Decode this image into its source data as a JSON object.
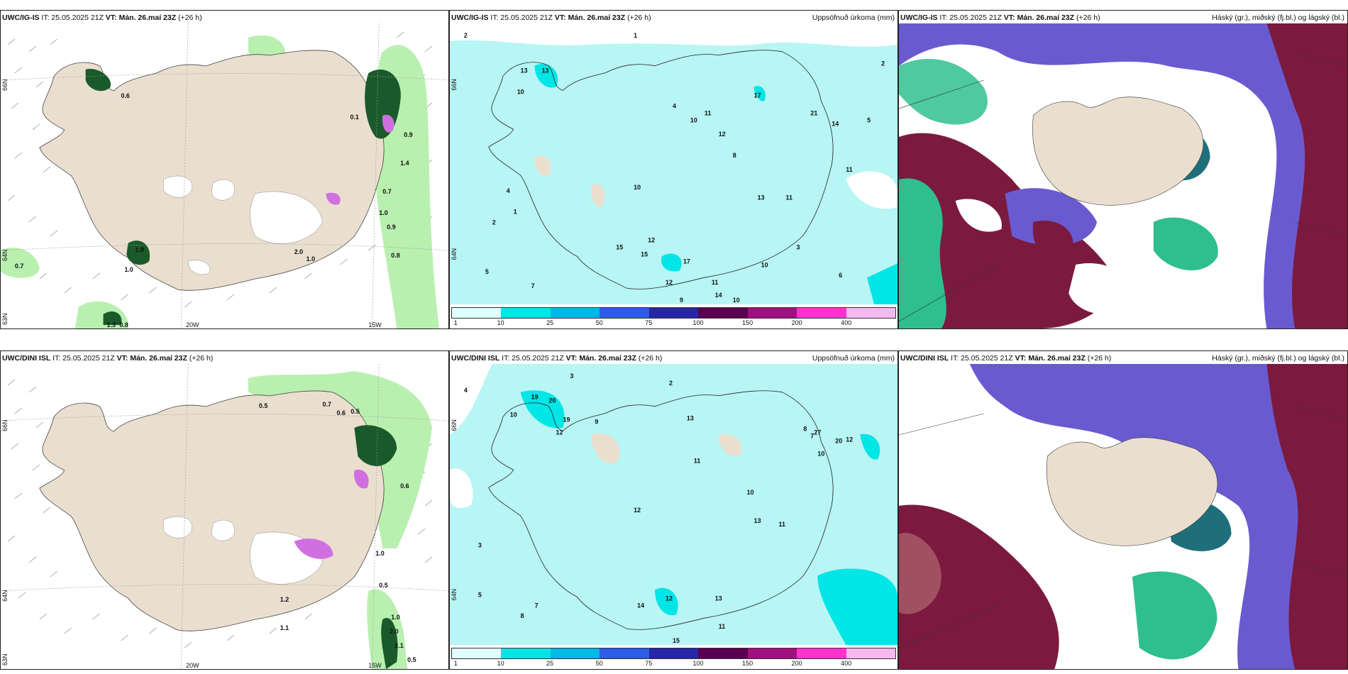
{
  "panels": {
    "top_left": {
      "model": "UWC/IG-IS",
      "it": "IT: 25.05.2025 21Z",
      "vt_label": "VT:",
      "vt": "Mán. 26.maí 23Z",
      "lead": "(+26 h)",
      "right_title": ""
    },
    "top_mid": {
      "model": "UWC/IG-IS",
      "it": "IT: 25.05.2025 21Z",
      "vt_label": "VT:",
      "vt": "Mán. 26.maí 23Z",
      "lead": "(+26 h)",
      "right_title": "Uppsöfnuð úrkoma (mm)"
    },
    "top_right": {
      "model": "UWC/IG-IS",
      "it": "IT: 25.05.2025 21Z",
      "vt_label": "VT:",
      "vt": "Mán. 26.maí 23Z",
      "lead": "(+26 h)",
      "right_title": "Háský (gr.), miðský (fj.bl.) og lágský (bl.)"
    },
    "bot_left": {
      "model": "UWC/DINI ISL",
      "it": "IT: 25.05.2025 21Z",
      "vt_label": "VT:",
      "vt": "Mán. 26.maí 23Z",
      "lead": "(+26 h)",
      "right_title": ""
    },
    "bot_mid": {
      "model": "UWC/DINI ISL",
      "it": "IT: 25.05.2025 21Z",
      "vt_label": "VT:",
      "vt": "Mán. 26.maí 23Z",
      "lead": "(+26 h)",
      "right_title": "Uppsöfnuð úrkoma (mm)"
    },
    "bot_right": {
      "model": "UWC/DINI ISL",
      "it": "IT: 25.05.2025 21Z",
      "vt_label": "VT:",
      "vt": "Mán. 26.maí 23Z",
      "lead": "(+26 h)",
      "right_title": "Háský (gr.), miðský (fj.bl.) og lágský (bl.)"
    }
  },
  "axis_labels": {
    "lat66": "66N",
    "lat64": "64N",
    "lat63": "63N",
    "lon20": "20W",
    "lon15": "15W"
  },
  "colorbar": {
    "ticks": [
      "1",
      "10",
      "25",
      "50",
      "75",
      "100",
      "150",
      "200",
      "400"
    ],
    "colors": [
      "#e0ffff",
      "#00e5e5",
      "#00b8e6",
      "#2e5ce6",
      "#2626a6",
      "#5a0050",
      "#a0107e",
      "#ff33cc",
      "#f7b8f0"
    ]
  },
  "precip_values_top_left": [
    "0.6",
    "0.1",
    "0.9",
    "1.4",
    "0.7",
    "1.0",
    "0.9",
    "0.8",
    "0.7",
    "1.9",
    "1.0",
    "1.3",
    "0.8",
    "2.0",
    "1.0"
  ],
  "precip_values_bot_left": [
    "0.7",
    "0.6",
    "0.5",
    "0.5",
    "0.6",
    "1.0",
    "0.5",
    "1.2",
    "1.1",
    "1.0",
    "2.1",
    "0.5",
    "2.0"
  ],
  "accum_top": [
    "2",
    "1",
    "2",
    "13",
    "13",
    "10",
    "10",
    "4",
    "11",
    "10",
    "8",
    "12",
    "5",
    "17",
    "4",
    "11",
    "21",
    "14",
    "13",
    "15",
    "11",
    "3",
    "1",
    "2",
    "5",
    "7",
    "12",
    "15",
    "17",
    "12",
    "14",
    "10",
    "11",
    "9",
    "10",
    "6"
  ],
  "accum_bot": [
    "4",
    "3",
    "2",
    "19",
    "20",
    "19",
    "12",
    "10",
    "9",
    "13",
    "11",
    "8",
    "7",
    "12",
    "27",
    "20",
    "10",
    "12",
    "13",
    "11",
    "10",
    "14",
    "12",
    "15",
    "13",
    "11",
    "3",
    "5",
    "7",
    "8"
  ],
  "colors": {
    "land": "#eadfcf",
    "sea_precip": "#b8f5f5",
    "green_light": "#b9f0b0",
    "green_dark": "#1a5a2a",
    "magenta": "#d070e0",
    "cloud_high": "#6a5ad0",
    "cloud_mid": "#7b1a3e",
    "cloud_low": "#2fbf8f"
  }
}
